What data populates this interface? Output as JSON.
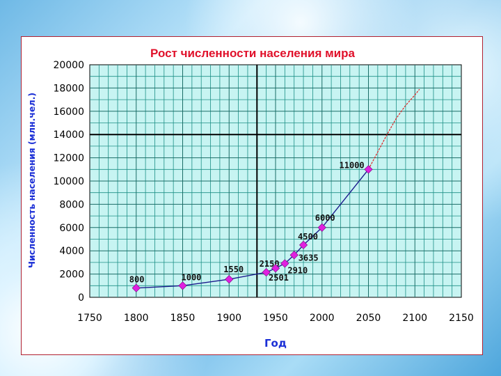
{
  "chart_data": {
    "type": "line",
    "title": "Рост численности населения мира",
    "xlabel": "Год",
    "ylabel": "Численность населения (млн.чел.)",
    "xlim": [
      1750,
      2150
    ],
    "ylim": [
      0,
      20000
    ],
    "x_ticks": [
      "1750",
      "1800",
      "1850",
      "1900",
      "1950",
      "2000",
      "2050",
      "2100",
      "2150"
    ],
    "y_ticks": [
      "0",
      "2000",
      "4000",
      "6000",
      "8000",
      "10000",
      "12000",
      "14000",
      "16000",
      "18000",
      "20000"
    ],
    "grid": true,
    "series": [
      {
        "x": [
          1800,
          1850,
          1900,
          1940,
          1950,
          1960,
          1970,
          1980,
          2000,
          2050
        ],
        "y": [
          800,
          1000,
          1550,
          2150,
          2501,
          2910,
          3635,
          4500,
          6000,
          11000
        ],
        "labels": [
          "800",
          "1000",
          "1550",
          "2150",
          "2501",
          "2910",
          "3635",
          "4500",
          "6000",
          "11000"
        ],
        "color": "#1a1a8c",
        "marker_color": "#e020e0"
      }
    ],
    "extrapolation": {
      "x": [
        2050,
        2060,
        2070,
        2080,
        2090,
        2100,
        2105
      ],
      "y": [
        11000,
        12500,
        14000,
        15400,
        16500,
        17400,
        17900
      ],
      "color": "#e02020"
    }
  }
}
